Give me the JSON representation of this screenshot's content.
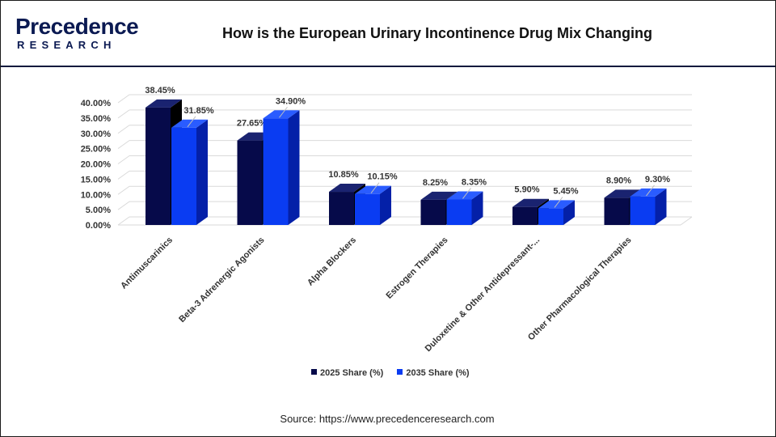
{
  "brand": {
    "logo_top": "Precedence",
    "logo_bottom": "RESEARCH"
  },
  "source": "Source: https://www.precedenceresearch.com",
  "colors": {
    "series_2025": "#060a4a",
    "series_2035": "#0a3cf2"
  },
  "chart_data": {
    "type": "bar",
    "title": "How is the European Urinary Incontinence Drug Mix Changing",
    "categories": [
      "Antimuscarinics",
      "Beta-3 Adrenergic Agonists",
      "Alpha Blockers",
      "Estrogen Therapies",
      "Duloxetine & Other Antidepressant-...",
      "Other Pharmacological Therapies"
    ],
    "series": [
      {
        "name": "2025 Share (%)",
        "values": [
          38.45,
          27.65,
          10.85,
          8.25,
          5.9,
          8.9
        ],
        "labels": [
          "38.45%",
          "27.65%",
          "10.85%",
          "8.25%",
          "5.90%",
          "8.90%"
        ]
      },
      {
        "name": "2035 Share (%)",
        "values": [
          31.85,
          34.9,
          10.15,
          8.35,
          5.45,
          9.3
        ],
        "labels": [
          "31.85%",
          "34.90%",
          "10.15%",
          "8.35%",
          "5.45%",
          "9.30%"
        ]
      }
    ],
    "yticks": [
      "0.00%",
      "5.00%",
      "10.00%",
      "15.00%",
      "20.00%",
      "25.00%",
      "30.00%",
      "35.00%",
      "40.00%"
    ],
    "ylim": [
      0,
      40
    ],
    "grid": true,
    "legend": "bottom"
  }
}
